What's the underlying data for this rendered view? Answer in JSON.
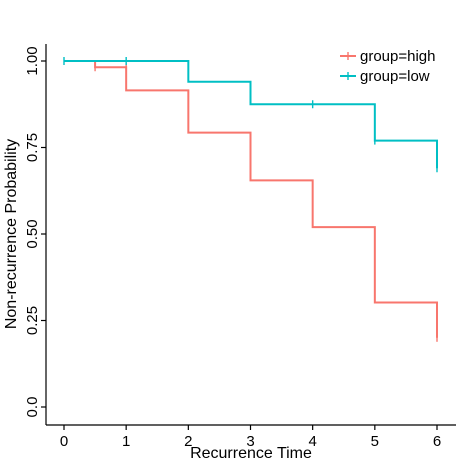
{
  "chart_data": {
    "type": "line",
    "subtype": "kaplan-meier step",
    "title": "",
    "xlabel": "Recurrence Time",
    "ylabel": "Non-recurrence Probability",
    "xlim": [
      0,
      6
    ],
    "ylim": [
      0,
      1
    ],
    "x_ticks": [
      0,
      1,
      2,
      3,
      4,
      5,
      6
    ],
    "x_tick_labels": [
      "0",
      "1",
      "2",
      "3",
      "4",
      "5",
      "6"
    ],
    "y_ticks": [
      0,
      0.25,
      0.5,
      0.75,
      1
    ],
    "y_tick_labels": [
      "0.0",
      "0.25",
      "0.50",
      "0.75",
      "1.00"
    ],
    "grid": false,
    "legend_position": "top-right",
    "series": [
      {
        "name": "group=high",
        "color": "#F8766D",
        "steps": [
          [
            0,
            1.0
          ],
          [
            0.5,
            0.982
          ],
          [
            1,
            0.915
          ],
          [
            2,
            0.793
          ],
          [
            3,
            0.655
          ],
          [
            4,
            0.52
          ],
          [
            5,
            0.302
          ],
          [
            6,
            0.2
          ]
        ],
        "censored": [
          [
            0.5,
            0.982
          ],
          [
            1,
            0.982
          ],
          [
            6,
            0.2
          ]
        ]
      },
      {
        "name": "group=low",
        "color": "#00BFC4",
        "steps": [
          [
            0,
            1.0
          ],
          [
            2,
            0.94
          ],
          [
            3,
            0.875
          ],
          [
            5,
            0.77
          ],
          [
            6,
            0.69
          ]
        ],
        "censored": [
          [
            0,
            1.0
          ],
          [
            1,
            1.0
          ],
          [
            4,
            0.875
          ],
          [
            5,
            0.77
          ],
          [
            6,
            0.69
          ]
        ]
      }
    ]
  }
}
